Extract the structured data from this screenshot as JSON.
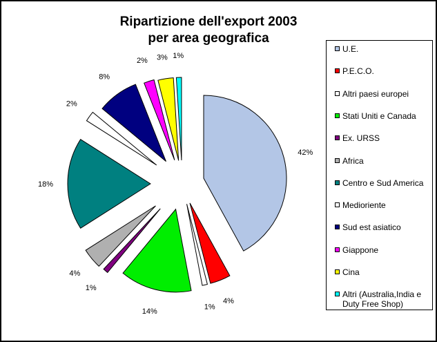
{
  "chart_data": {
    "type": "pie",
    "title": [
      "Ripartizione dell'export 2003",
      "per area geografica"
    ],
    "categories": [
      "U.E.",
      "P.E.C.O.",
      "Altri paesi europei",
      "Stati Uniti e Canada",
      "Ex. URSS",
      "Africa",
      "Centro e Sud America",
      "Medioriente",
      "Sud est asiatico",
      "Giappone",
      "Cina",
      "Altri (Australia,India e Duty Free Shop)"
    ],
    "values": [
      42,
      4,
      1,
      14,
      1,
      4,
      18,
      2,
      8,
      2,
      3,
      1
    ],
    "data_labels": [
      "42%",
      "4%",
      "1%",
      "14%",
      "1%",
      "4%",
      "18%",
      "2%",
      "8%",
      "2%",
      "3%",
      "1%"
    ],
    "colors": [
      "#b3c6e6",
      "#ff0000",
      "#ffffff",
      "#00ee00",
      "#800080",
      "#b0b0b0",
      "#008080",
      "#ffffff",
      "#000080",
      "#ff00ff",
      "#ffff00",
      "#00ffff"
    ],
    "legend_position": "right",
    "exploded": true
  }
}
